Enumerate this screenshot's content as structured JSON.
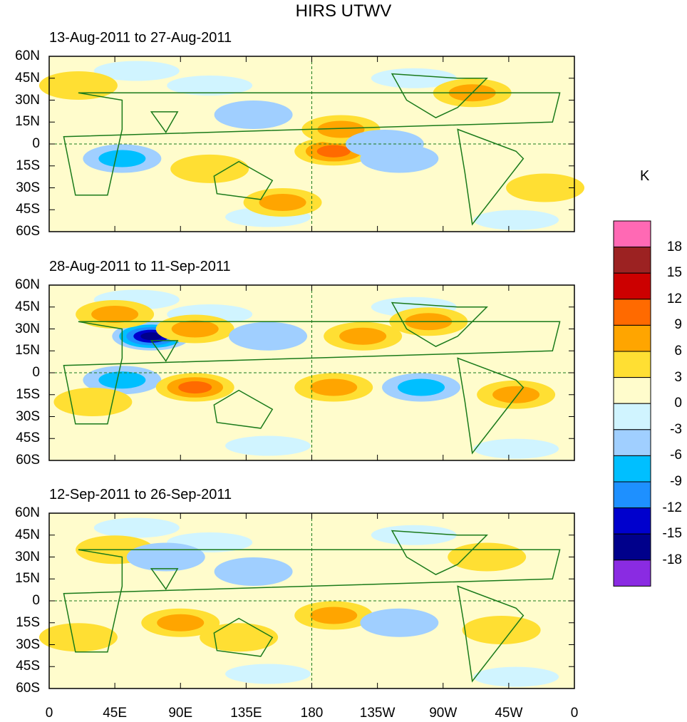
{
  "title": "HIRS UTWV",
  "units": "K",
  "panels": [
    {
      "title": "13-Aug-2011 to 27-Aug-2011"
    },
    {
      "title": "28-Aug-2011 to 11-Sep-2011"
    },
    {
      "title": "12-Sep-2011 to 26-Sep-2011"
    }
  ],
  "lat_labels": [
    "60N",
    "45N",
    "30N",
    "15N",
    "0",
    "15S",
    "30S",
    "45S",
    "60S"
  ],
  "lon_labels": [
    "0",
    "45E",
    "90E",
    "135E",
    "180",
    "135W",
    "90W",
    "45W",
    "0"
  ],
  "colorbar": {
    "labels": [
      "18",
      "15",
      "12",
      "9",
      "6",
      "3",
      "0",
      "-3",
      "-6",
      "-9",
      "-12",
      "-15",
      "-18"
    ],
    "colors": [
      "#ff69b4",
      "#9c2222",
      "#cc0000",
      "#ff6a00",
      "#ffa500",
      "#ffdf33",
      "#fffccc",
      "#d0f4ff",
      "#a0cfff",
      "#00bfff",
      "#1e90ff",
      "#0000cd",
      "#00008b",
      "#8a2be2"
    ]
  },
  "chart_data": {
    "type": "heatmap",
    "title": "HIRS UTWV",
    "units": "K",
    "xlim": [
      0,
      360
    ],
    "ylim": [
      -60,
      60
    ],
    "levels": [
      -18,
      -15,
      -12,
      -9,
      -6,
      -3,
      0,
      3,
      6,
      9,
      12,
      15,
      18
    ],
    "anomalies": [
      [
        [
          195,
          -5,
          9
        ],
        [
          200,
          10,
          6
        ],
        [
          110,
          -17,
          4
        ],
        [
          160,
          -40,
          6
        ],
        [
          50,
          -10,
          -6
        ],
        [
          240,
          -10,
          -4
        ],
        [
          140,
          20,
          -4
        ],
        [
          230,
          0,
          -4
        ],
        [
          290,
          35,
          6
        ],
        [
          20,
          40,
          4
        ],
        [
          340,
          -30,
          4
        ]
      ],
      [
        [
          70,
          25,
          -15
        ],
        [
          50,
          -5,
          -8
        ],
        [
          100,
          -10,
          9
        ],
        [
          100,
          30,
          6
        ],
        [
          45,
          40,
          6
        ],
        [
          195,
          -10,
          7
        ],
        [
          215,
          25,
          6
        ],
        [
          255,
          -10,
          -8
        ],
        [
          320,
          -15,
          7
        ],
        [
          30,
          -20,
          4
        ],
        [
          150,
          25,
          -4
        ],
        [
          260,
          35,
          6
        ]
      ],
      [
        [
          90,
          -15,
          6
        ],
        [
          195,
          -10,
          7
        ],
        [
          45,
          35,
          4
        ],
        [
          140,
          20,
          -4
        ],
        [
          80,
          30,
          -4
        ],
        [
          310,
          -20,
          4
        ],
        [
          240,
          -15,
          -3
        ],
        [
          20,
          -25,
          4
        ],
        [
          300,
          30,
          4
        ],
        [
          130,
          -25,
          4
        ]
      ]
    ]
  }
}
